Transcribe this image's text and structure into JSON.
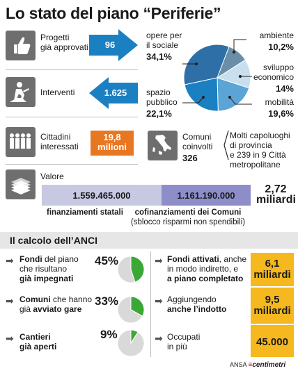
{
  "title": "Lo stato del piano “Periferie”",
  "rows": {
    "progetti": {
      "label": "Progetti\ngià approvati",
      "value": "96"
    },
    "interventi": {
      "label": "Interventi",
      "value": "1.625"
    },
    "cittadini": {
      "label": "Cittadini\ninteressati",
      "value_line1": "19,8",
      "value_line2": "milioni"
    },
    "comuni": {
      "label": "Comuni\ncoinvolti",
      "value": "326",
      "note": "Molti capoluoghi\ndi provincia\ne 239 in 9 Città\nmetropolitane"
    },
    "valore": {
      "label": "Valore"
    }
  },
  "chart_data": [
    {
      "type": "pie",
      "slices": [
        {
          "name": "opere per\nil sociale",
          "value": 34.1,
          "label": "34,1%",
          "color": "#2f6fa8"
        },
        {
          "name": "ambiente",
          "value": 10.2,
          "label": "10,2%",
          "color": "#6a8ea8"
        },
        {
          "name": "sviluppo\neconomico",
          "value": 14,
          "label": "14%",
          "color": "#c9dfee"
        },
        {
          "name": "mobilità",
          "value": 19.6,
          "label": "19,6%",
          "color": "#5aa5d6"
        },
        {
          "name": "spazio\npubblico",
          "value": 22.1,
          "label": "22,1%",
          "color": "#1b80c2"
        }
      ]
    },
    {
      "type": "bar",
      "orientation": "horizontal-stacked",
      "series": [
        {
          "name": "finanziamenti statali",
          "value": 1559465000,
          "label": "1.559.465.000",
          "color": "#c7c9e3"
        },
        {
          "name": "cofinanziamenti dei Comuni",
          "note": "(sblocco risparmi non spendibili)",
          "value": 1161190000,
          "label": "1.161.190.000",
          "color": "#8d8ec9"
        }
      ],
      "total_label": "2,72\nmiliardi"
    },
    {
      "type": "pie",
      "slices": [
        {
          "name": "impegnati",
          "value": 45,
          "color": "#3aa836"
        },
        {
          "name": "resto",
          "value": 55,
          "color": "#d9d9d9"
        }
      ],
      "label": "45%"
    },
    {
      "type": "pie",
      "slices": [
        {
          "name": "avviati",
          "value": 33,
          "color": "#3aa836"
        },
        {
          "name": "resto",
          "value": 67,
          "color": "#d9d9d9"
        }
      ],
      "label": "33%"
    },
    {
      "type": "pie",
      "slices": [
        {
          "name": "aperti",
          "value": 9,
          "color": "#3aa836"
        },
        {
          "name": "resto",
          "value": 91,
          "color": "#d9d9d9"
        }
      ],
      "label": "9%"
    }
  ],
  "anci": {
    "header": "Il calcolo dell’ANCI",
    "left": [
      {
        "bold": "Fondi",
        "text1": " del piano\nche risultano\n",
        "bold2": "già impegnati"
      },
      {
        "bold": "Comuni",
        "text1": " che hanno\ngià ",
        "bold2": "avviato gare"
      },
      {
        "bold": "Cantieri\ngià aperti",
        "text1": "",
        "bold2": ""
      }
    ],
    "right": [
      {
        "bold": "Fondi attivati",
        "text1": ", anche\nin modo indiretto, e\n",
        "bold2": "a piano completato",
        "value": "6,1\nmiliardi"
      },
      {
        "bold": "",
        "text1": "Aggiungendo\n",
        "bold2": "anche l’indotto",
        "value": "9,5\nmiliardi"
      },
      {
        "bold": "",
        "text1": "Occupati\nin più",
        "bold2": "",
        "value": "45.000"
      }
    ]
  },
  "footer": {
    "ansa": "ANSA",
    "centimetri": "centimetri"
  }
}
